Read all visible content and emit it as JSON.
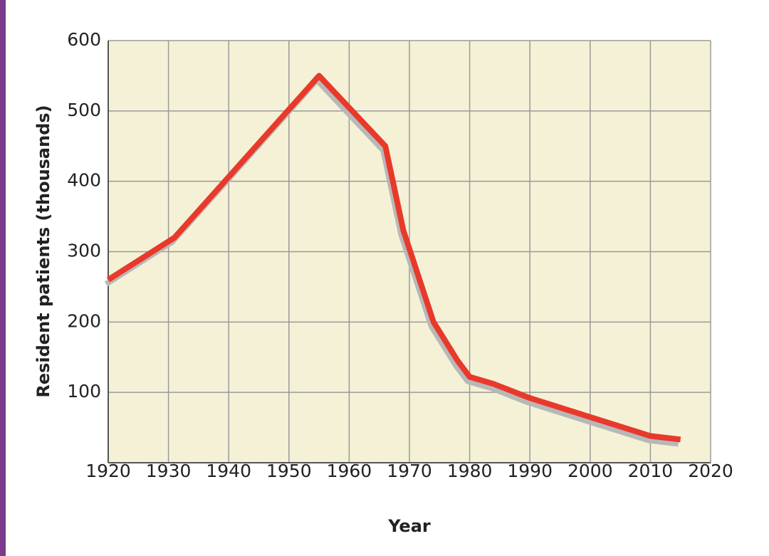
{
  "chart_data": {
    "type": "line",
    "x_label": "Year",
    "y_label": "Resident patients (thousands)",
    "x": [
      1920,
      1931,
      1955,
      1966,
      1969,
      1974,
      1978,
      1980,
      1984,
      1990,
      2000,
      2010,
      2015
    ],
    "values": [
      260,
      320,
      550,
      450,
      330,
      200,
      145,
      122,
      112,
      92,
      65,
      38,
      33
    ],
    "color": "#e8392b",
    "xlim": [
      1920,
      2020
    ],
    "xticks": [
      1920,
      1930,
      1940,
      1950,
      1960,
      1970,
      1980,
      1990,
      2000,
      2010,
      2020
    ],
    "ylim": [
      0,
      600
    ],
    "yticks": [
      100,
      200,
      300,
      400,
      500,
      600
    ],
    "grid": true
  }
}
